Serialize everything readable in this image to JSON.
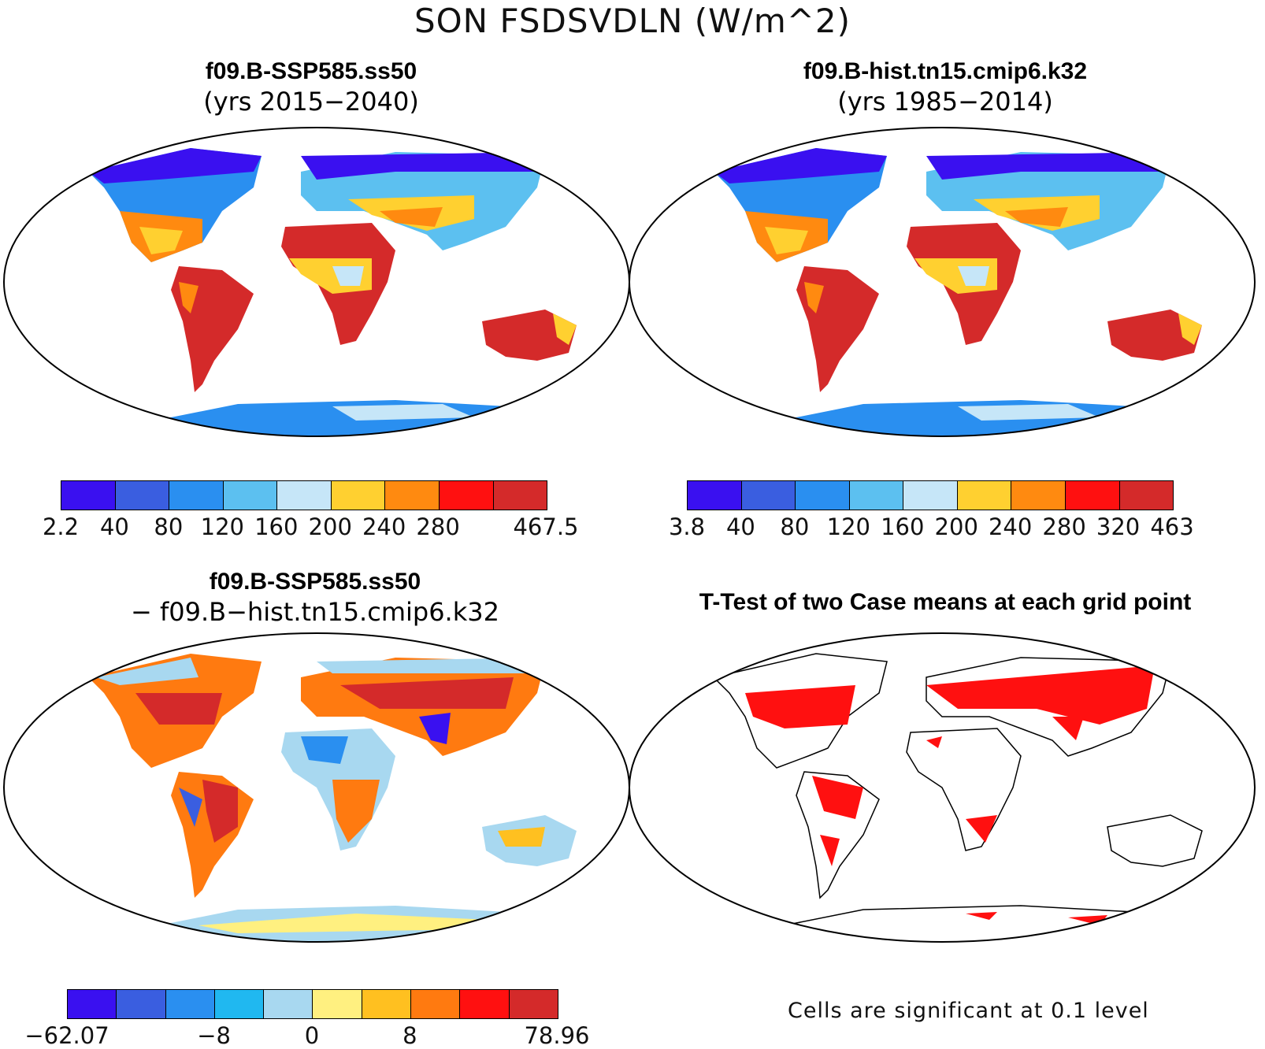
{
  "figure": {
    "title": "SON FSDSVDLN (W/m^2)"
  },
  "panels": {
    "top_left": {
      "title": "f09.B-SSP585.ss50",
      "subtitle": "(yrs 2015−2040)",
      "colorbar": {
        "colors": [
          "#3a10f0",
          "#3a5ee0",
          "#2a8ff0",
          "#5cc0f0",
          "#c6e6f8",
          "#ffd030",
          "#ff8a10",
          "#ff1010",
          "#d42a2a"
        ],
        "ticks": [
          "2.2",
          "40",
          "80",
          "120",
          "160",
          "200",
          "240",
          "280",
          "467.5"
        ]
      }
    },
    "top_right": {
      "title": "f09.B-hist.tn15.cmip6.k32",
      "subtitle": "(yrs 1985−2014)",
      "colorbar": {
        "colors": [
          "#3a10f0",
          "#3a5ee0",
          "#2a8ff0",
          "#5cc0f0",
          "#c6e6f8",
          "#ffd030",
          "#ff8a10",
          "#ff1010",
          "#d42a2a"
        ],
        "ticks": [
          "3.8",
          "40",
          "80",
          "120",
          "160",
          "200",
          "240",
          "280",
          "320",
          "463"
        ]
      }
    },
    "bottom_left": {
      "title": "f09.B-SSP585.ss50",
      "subtitle": "− f09.B−hist.tn15.cmip6.k32",
      "colorbar": {
        "colors": [
          "#3a10f0",
          "#3a5ee0",
          "#2a8ff0",
          "#20b8f0",
          "#a8d8f0",
          "#fff080",
          "#ffc020",
          "#ff7a10",
          "#ff1010",
          "#d42a2a"
        ],
        "ticks": [
          "−62.07",
          "−8",
          "0",
          "8",
          "78.96"
        ]
      }
    },
    "bottom_right": {
      "title": "T-Test of two Case means at each grid point",
      "note": "Cells are significant at 0.1 level"
    }
  }
}
